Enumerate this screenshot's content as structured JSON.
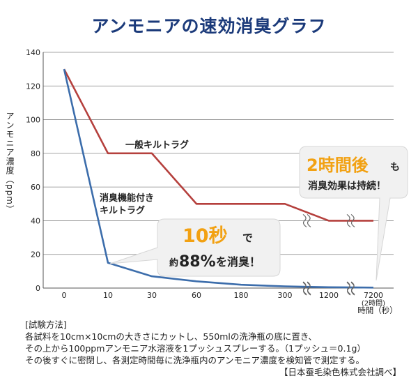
{
  "title": "アンモニアの速効消臭グラフ",
  "chart_data": {
    "type": "line",
    "ylabel": "アンモニア濃度（ppm）",
    "xlabel": "時間（秒）",
    "ylim": [
      0,
      140
    ],
    "yticks": [
      0,
      20,
      40,
      60,
      80,
      100,
      120,
      140
    ],
    "categories": [
      "0",
      "10",
      "30",
      "60",
      "180",
      "300",
      "1200",
      "7200"
    ],
    "category_note": "(2時間)",
    "series": [
      {
        "name": "一般キルトラグ",
        "color": "#b5403d",
        "values": [
          130,
          80,
          80,
          50,
          50,
          50,
          40,
          40
        ]
      },
      {
        "name": "消臭機能付きキルトラグ",
        "name_lines": [
          "消臭機能付き",
          "キルトラグ"
        ],
        "color": "#3c6dab",
        "values": [
          130,
          15,
          7,
          4,
          2,
          1,
          0.5,
          0.3
        ]
      }
    ],
    "grid": true,
    "axis_break": "between 300 and 1200, and between 1200 and 7200",
    "annotations": [
      {
        "id": "callout-10sec",
        "highlight": "10秒",
        "small": "で",
        "line2_prefix": "約",
        "line2_highlight": "88%",
        "line2_suffix": "を消臭！"
      },
      {
        "id": "callout-2hours",
        "highlight": "2時間後",
        "small": "も",
        "line2": "消臭効果は持続！"
      }
    ]
  },
  "method": {
    "heading": "[試験方法]",
    "line1": "各試料を10cm×10cmの大きさにカットし、550mlの洗浄瓶の底に置き、",
    "line2": "その上から100ppmアンモニア水溶液を1プッシュスプレーする。（1プッシュ＝0.1g）",
    "line3": "その後すぐに密閉し、各測定時間毎に洗浄瓶内のアンモニア濃度を検知管で測定する。",
    "credit": "【日本蚕毛染色株式会社調べ】"
  },
  "colors": {
    "title": "#1b3a7a",
    "highlight": "#f2a112",
    "grid": "#888888",
    "callout_bg": "#f1f1f1"
  }
}
